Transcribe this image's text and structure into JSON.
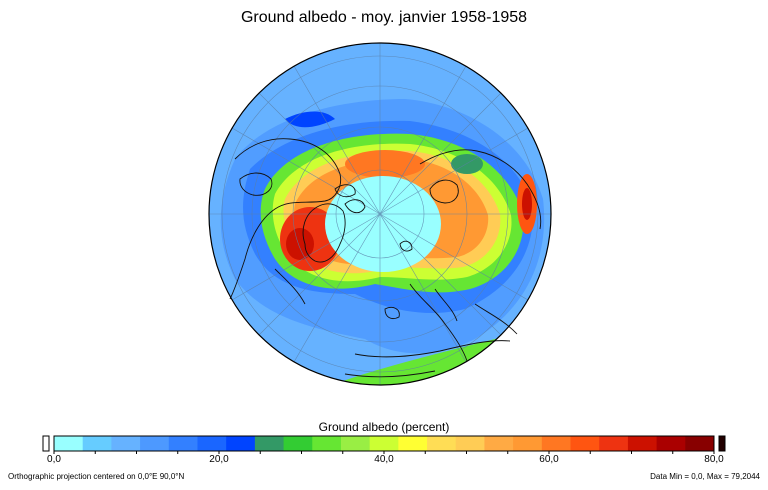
{
  "title": "Ground albedo -  moy. janvier 1958-1958",
  "colorbar": {
    "label": "Ground albedo (percent)",
    "ticks": [
      "0,0",
      "20,0",
      "40,0",
      "60,0",
      "80,0"
    ],
    "tick_values": [
      0,
      20,
      40,
      60,
      80
    ],
    "min": 0,
    "max": 80,
    "colors": [
      "#99ffff",
      "#66ccff",
      "#66b2ff",
      "#4d99ff",
      "#3380ff",
      "#1a66ff",
      "#0044ff",
      "#339966",
      "#33cc33",
      "#66e633",
      "#99ee44",
      "#ccff33",
      "#ffff33",
      "#ffdd55",
      "#ffcc55",
      "#ffaa44",
      "#ff9933",
      "#ff7722",
      "#ff5511",
      "#ee3311",
      "#cc1100",
      "#aa0000",
      "#880000"
    ],
    "under_color": "#ffffff",
    "over_color": "#220000"
  },
  "footer": {
    "projection": "Orthographic projection centered on 0,0°E 90,0°N",
    "data_range": "Data Min = 0,0, Max = 79,2044"
  },
  "map": {
    "projection": "orthographic",
    "center_lon": 0,
    "center_lat": 90,
    "background_color": "#66b2ff",
    "pole_color": "#99ffff"
  }
}
